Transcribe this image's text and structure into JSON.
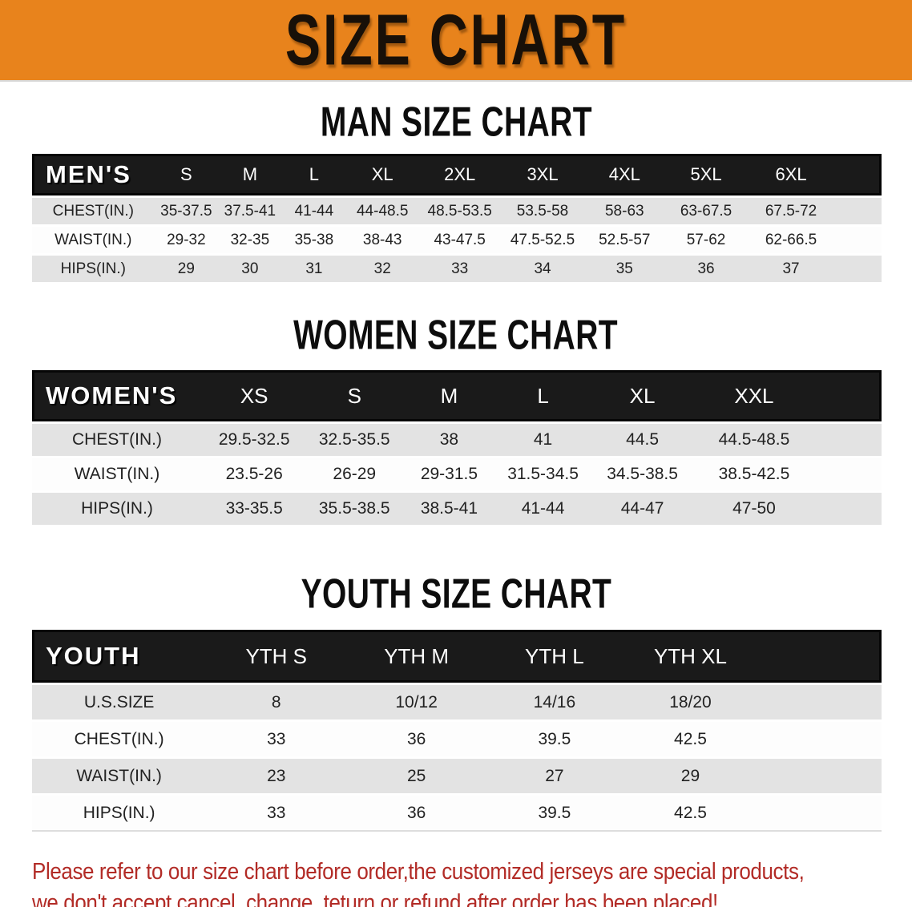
{
  "banner": {
    "title": "SIZE CHART"
  },
  "colors": {
    "banner_bg": "#E8831C",
    "banner_text": "#181008",
    "header_bar_bg": "#1a1a1a",
    "header_bar_text": "#ffffff",
    "row_alt_bg": "#E3E3E3",
    "note_text": "#B22B26"
  },
  "sections": [
    {
      "heading": "MAN SIZE CHART",
      "table": {
        "header": {
          "label": "MEN'S",
          "sizes": [
            "S",
            "M",
            "L",
            "XL",
            "2XL",
            "3XL",
            "4XL",
            "5XL",
            "6XL"
          ]
        },
        "rows": [
          {
            "label": "CHEST(IN.)",
            "values": [
              "35-37.5",
              "37.5-41",
              "41-44",
              "44-48.5",
              "48.5-53.5",
              "53.5-58",
              "58-63",
              "63-67.5",
              "67.5-72"
            ]
          },
          {
            "label": "WAIST(IN.)",
            "values": [
              "29-32",
              "32-35",
              "35-38",
              "38-43",
              "43-47.5",
              "47.5-52.5",
              "52.5-57",
              "57-62",
              "62-66.5"
            ]
          },
          {
            "label": "HIPS(IN.)",
            "values": [
              "29",
              "30",
              "31",
              "32",
              "33",
              "34",
              "35",
              "36",
              "37"
            ]
          }
        ]
      }
    },
    {
      "heading": "WOMEN SIZE CHART",
      "table": {
        "header": {
          "label": "WOMEN'S",
          "sizes": [
            "XS",
            "S",
            "M",
            "L",
            "XL",
            "XXL"
          ]
        },
        "rows": [
          {
            "label": "CHEST(IN.)",
            "values": [
              "29.5-32.5",
              "32.5-35.5",
              "38",
              "41",
              "44.5",
              "44.5-48.5"
            ]
          },
          {
            "label": "WAIST(IN.)",
            "values": [
              "23.5-26",
              "26-29",
              "29-31.5",
              "31.5-34.5",
              "34.5-38.5",
              "38.5-42.5"
            ]
          },
          {
            "label": "HIPS(IN.)",
            "values": [
              "33-35.5",
              "35.5-38.5",
              "38.5-41",
              "41-44",
              "44-47",
              "47-50"
            ]
          }
        ]
      }
    },
    {
      "heading": "YOUTH SIZE CHART",
      "table": {
        "header": {
          "label": "YOUTH",
          "sizes": [
            "YTH S",
            "YTH M",
            "YTH L",
            "YTH XL"
          ]
        },
        "rows": [
          {
            "label": "U.S.SIZE",
            "values": [
              "8",
              "10/12",
              "14/16",
              "18/20"
            ]
          },
          {
            "label": "CHEST(IN.)",
            "values": [
              "33",
              "36",
              "39.5",
              "42.5"
            ]
          },
          {
            "label": "WAIST(IN.)",
            "values": [
              "23",
              "25",
              "27",
              "29"
            ]
          },
          {
            "label": "HIPS(IN.)",
            "values": [
              "33",
              "36",
              "39.5",
              "42.5"
            ]
          }
        ]
      }
    }
  ],
  "note": {
    "line1": "Please refer to our size chart before order,the customized jerseys are special products,",
    "line2": "we don't accept cancel, change, teturn or refund after order has been placed!"
  }
}
